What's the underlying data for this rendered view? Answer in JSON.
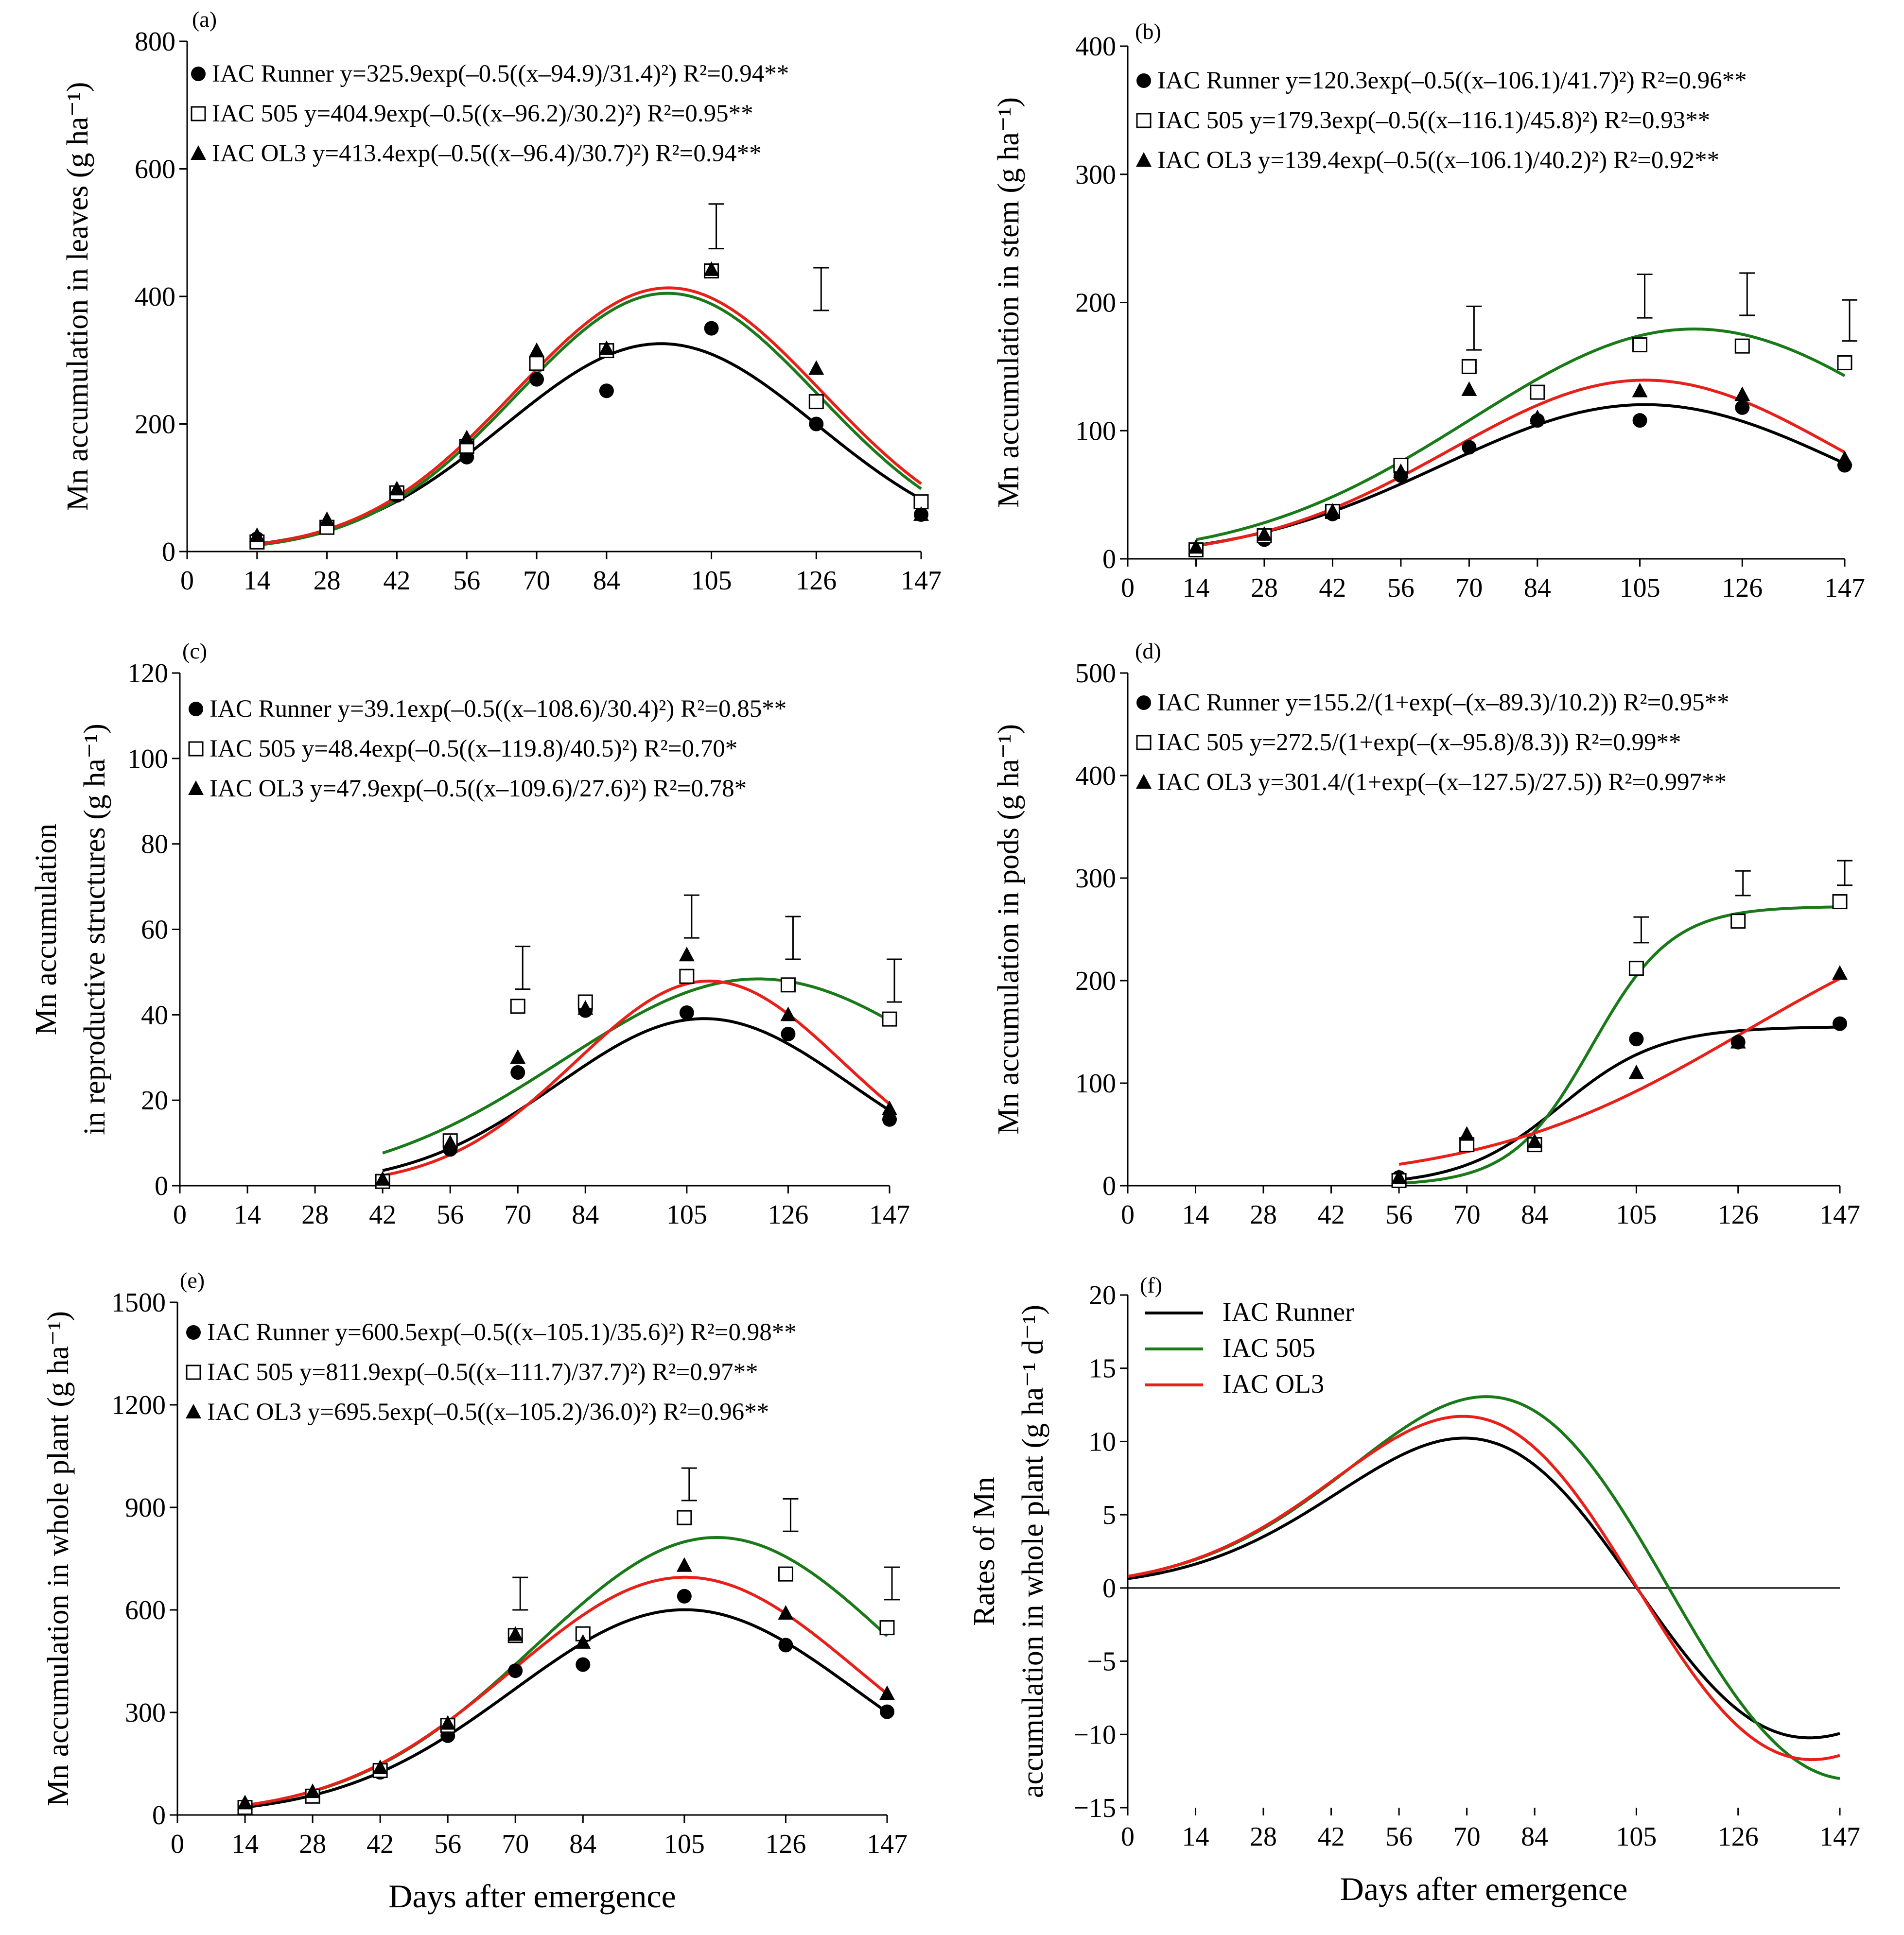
{
  "figure": {
    "xlabel_bottom": "Days after emergence"
  },
  "chart_data": [
    {
      "id": "a",
      "type": "scatter",
      "panel_label": "(a)",
      "ylabel_lines": [
        "Mn accumulation in leaves (g ha⁻¹)"
      ],
      "xlabel": "",
      "ylim": [
        0,
        800
      ],
      "yticks": [
        0,
        200,
        400,
        600,
        800
      ],
      "xticks": [
        0,
        14,
        28,
        42,
        56,
        70,
        84,
        105,
        126,
        147
      ],
      "x_range": [
        0,
        147
      ],
      "series": [
        {
          "name": "IAC Runner",
          "marker": "circle",
          "color": "#000000",
          "x": [
            14,
            28,
            42,
            56,
            70,
            84,
            105,
            126,
            147
          ],
          "y": [
            20,
            40,
            88,
            148,
            270,
            252,
            350,
            200,
            58
          ],
          "equation": "y=325.9exp(–0.5((x–94.9)/31.4)²) R²=0.94**",
          "fit": {
            "kind": "gauss",
            "a": 325.9,
            "b": 94.9,
            "c": 31.4
          }
        },
        {
          "name": "IAC 505",
          "marker": "square",
          "color": "#1a7a1a",
          "x": [
            14,
            28,
            42,
            56,
            70,
            84,
            105,
            126,
            147
          ],
          "y": [
            15,
            38,
            92,
            165,
            295,
            315,
            440,
            235,
            78
          ],
          "equation": "y=404.9exp(–0.5((x–96.2)/30.2)²) R²=0.95**",
          "fit": {
            "kind": "gauss",
            "a": 404.9,
            "b": 96.2,
            "c": 30.2
          }
        },
        {
          "name": "IAC OL3",
          "marker": "triangle",
          "color": "#e8201a",
          "x": [
            14,
            28,
            42,
            56,
            70,
            84,
            105,
            126,
            147
          ],
          "y": [
            25,
            50,
            98,
            178,
            315,
            318,
            442,
            287,
            58
          ],
          "equation": "y=413.4exp(–0.5((x–96.4)/30.7)²) R²=0.94**",
          "fit": {
            "kind": "gauss",
            "a": 413.4,
            "b": 96.4,
            "c": 30.7
          }
        }
      ],
      "error_bars": [
        {
          "x": 105,
          "low": 475,
          "high": 545
        },
        {
          "x": 126,
          "low": 378,
          "high": 445
        }
      ]
    },
    {
      "id": "b",
      "type": "scatter",
      "panel_label": "(b)",
      "ylabel_lines": [
        "Mn accumulation in stem (g ha⁻¹)"
      ],
      "xlabel": "",
      "ylim": [
        0,
        400
      ],
      "yticks": [
        0,
        100,
        200,
        300,
        400
      ],
      "xticks": [
        0,
        14,
        28,
        42,
        56,
        70,
        84,
        105,
        126,
        147
      ],
      "x_range": [
        0,
        147
      ],
      "series": [
        {
          "name": "IAC Runner",
          "marker": "circle",
          "color": "#000000",
          "x": [
            14,
            28,
            42,
            56,
            70,
            84,
            105,
            126,
            147
          ],
          "y": [
            7,
            15,
            35,
            65,
            87,
            108,
            108,
            118,
            73
          ],
          "equation": "y=120.3exp(–0.5((x–106.1)/41.7)²) R²=0.96**",
          "fit": {
            "kind": "gauss",
            "a": 120.3,
            "b": 106.1,
            "c": 41.7
          }
        },
        {
          "name": "IAC 505",
          "marker": "square",
          "color": "#1a7a1a",
          "x": [
            14,
            28,
            42,
            56,
            70,
            84,
            105,
            126,
            147
          ],
          "y": [
            7,
            18,
            37,
            73,
            150,
            130,
            167,
            166,
            153
          ],
          "equation": "y=179.3exp(–0.5((x–116.1)/45.8)²) R²=0.93**",
          "fit": {
            "kind": "gauss",
            "a": 179.3,
            "b": 116.1,
            "c": 45.8
          }
        },
        {
          "name": "IAC OL3",
          "marker": "triangle",
          "color": "#e8201a",
          "x": [
            14,
            28,
            42,
            56,
            70,
            84,
            105,
            126,
            147
          ],
          "y": [
            9,
            19,
            37,
            68,
            132,
            110,
            131,
            128,
            78
          ],
          "equation": "y=139.4exp(–0.5((x–106.1)/40.2)²) R²=0.92**",
          "fit": {
            "kind": "gauss",
            "a": 139.4,
            "b": 106.1,
            "c": 40.2
          }
        }
      ],
      "error_bars": [
        {
          "x": 70,
          "low": 163,
          "high": 197
        },
        {
          "x": 105,
          "low": 188,
          "high": 222
        },
        {
          "x": 126,
          "low": 190,
          "high": 223
        },
        {
          "x": 147,
          "low": 170,
          "high": 202
        }
      ]
    },
    {
      "id": "c",
      "type": "scatter",
      "panel_label": "(c)",
      "ylabel_lines": [
        "Mn accumulation",
        "in reproductive structures (g ha⁻¹)"
      ],
      "xlabel": "",
      "ylim": [
        0,
        120
      ],
      "yticks": [
        0,
        20,
        40,
        60,
        80,
        100,
        120
      ],
      "xticks": [
        0,
        14,
        28,
        42,
        56,
        70,
        84,
        105,
        126,
        147
      ],
      "x_range": [
        0,
        147
      ],
      "series": [
        {
          "name": "IAC Runner",
          "marker": "circle",
          "color": "#000000",
          "x": [
            42,
            56,
            70,
            84,
            105,
            126,
            147
          ],
          "y": [
            1,
            8.5,
            26.5,
            41,
            40.5,
            35.5,
            15.5
          ],
          "equation": "y=39.1exp(–0.5((x–108.6)/30.4)²) R²=0.85**",
          "fit": {
            "kind": "gauss",
            "a": 39.1,
            "b": 108.6,
            "c": 30.4
          }
        },
        {
          "name": "IAC 505",
          "marker": "square",
          "color": "#1a7a1a",
          "x": [
            42,
            56,
            70,
            84,
            105,
            126,
            147
          ],
          "y": [
            1,
            10.5,
            42,
            43,
            49,
            47,
            39
          ],
          "equation": "y=48.4exp(–0.5((x–119.8)/40.5)²) R²=0.70*",
          "fit": {
            "kind": "gauss",
            "a": 48.4,
            "b": 119.8,
            "c": 40.5
          }
        },
        {
          "name": "IAC OL3",
          "marker": "triangle",
          "color": "#e8201a",
          "x": [
            42,
            56,
            70,
            84,
            105,
            126,
            147
          ],
          "y": [
            1.5,
            10,
            30,
            41.5,
            54,
            40,
            18
          ],
          "equation": "y=47.9exp(–0.5((x–109.6)/27.6)²) R²=0.78*",
          "fit": {
            "kind": "gauss",
            "a": 47.9,
            "b": 109.6,
            "c": 27.6
          }
        }
      ],
      "error_bars": [
        {
          "x": 70,
          "low": 46,
          "high": 56
        },
        {
          "x": 105,
          "low": 58,
          "high": 68
        },
        {
          "x": 126,
          "low": 53,
          "high": 63
        },
        {
          "x": 147,
          "low": 43,
          "high": 53
        }
      ]
    },
    {
      "id": "d",
      "type": "scatter",
      "panel_label": "(d)",
      "ylabel_lines": [
        "Mn accumulation in pods (g ha⁻¹)"
      ],
      "xlabel": "",
      "ylim": [
        0,
        500
      ],
      "yticks": [
        0,
        100,
        200,
        300,
        400,
        500
      ],
      "xticks": [
        0,
        14,
        28,
        42,
        56,
        70,
        84,
        105,
        126,
        147
      ],
      "x_range": [
        0,
        147
      ],
      "series": [
        {
          "name": "IAC Runner",
          "marker": "circle",
          "color": "#000000",
          "x": [
            56,
            70,
            84,
            105,
            126,
            147
          ],
          "y": [
            8,
            42,
            40,
            143,
            140,
            158
          ],
          "equation": "y=155.2/(1+exp(–(x–89.3)/10.2)) R²=0.95**",
          "fit": {
            "kind": "logistic",
            "a": 155.2,
            "b": 89.3,
            "c": 10.2,
            "x_start": 56
          }
        },
        {
          "name": "IAC 505",
          "marker": "square",
          "color": "#1a7a1a",
          "x": [
            56,
            70,
            84,
            105,
            126,
            147
          ],
          "y": [
            5,
            40,
            40,
            212,
            258,
            277
          ],
          "equation": "y=272.5/(1+exp(–(x–95.8)/8.3)) R²=0.99**",
          "fit": {
            "kind": "logistic",
            "a": 272.5,
            "b": 95.8,
            "c": 8.3,
            "x_start": 56
          }
        },
        {
          "name": "IAC OL3",
          "marker": "triangle",
          "color": "#e8201a",
          "x": [
            56,
            70,
            84,
            105,
            126,
            147
          ],
          "y": [
            8,
            50,
            43,
            110,
            140,
            207
          ],
          "equation": "y=301.4/(1+exp(–(x–127.5)/27.5)) R²=0.997**",
          "fit": {
            "kind": "logistic",
            "a": 301.4,
            "b": 127.5,
            "c": 27.5,
            "x_start": 56
          }
        }
      ],
      "error_bars": [
        {
          "x": 105,
          "low": 237,
          "high": 262
        },
        {
          "x": 126,
          "low": 283,
          "high": 307
        },
        {
          "x": 147,
          "low": 293,
          "high": 317
        }
      ]
    },
    {
      "id": "e",
      "type": "scatter",
      "panel_label": "(e)",
      "ylabel_lines": [
        "Mn accumulation in whole plant (g ha⁻¹)"
      ],
      "xlabel": "Days after emergence",
      "ylim": [
        0,
        1500
      ],
      "yticks": [
        0,
        300,
        600,
        900,
        1200,
        1500
      ],
      "xticks": [
        0,
        14,
        28,
        42,
        56,
        70,
        84,
        105,
        126,
        147
      ],
      "x_range": [
        0,
        147
      ],
      "series": [
        {
          "name": "IAC Runner",
          "marker": "circle",
          "color": "#000000",
          "x": [
            14,
            28,
            42,
            56,
            70,
            84,
            105,
            126,
            147
          ],
          "y": [
            25,
            55,
            125,
            232,
            422,
            440,
            640,
            497,
            302
          ],
          "equation": "y=600.5exp(–0.5((x–105.1)/35.6)²) R²=0.98**",
          "fit": {
            "kind": "gauss",
            "a": 600.5,
            "b": 105.1,
            "c": 35.6
          }
        },
        {
          "name": "IAC 505",
          "marker": "square",
          "color": "#1a7a1a",
          "x": [
            14,
            28,
            42,
            56,
            70,
            84,
            105,
            126,
            147
          ],
          "y": [
            22,
            55,
            130,
            262,
            525,
            530,
            870,
            705,
            548
          ],
          "equation": "y=811.9exp(–0.5((x–111.7)/37.7)²) R²=0.97**",
          "fit": {
            "kind": "gauss",
            "a": 811.9,
            "b": 111.7,
            "c": 37.7
          }
        },
        {
          "name": "IAC OL3",
          "marker": "triangle",
          "color": "#e8201a",
          "x": [
            14,
            28,
            42,
            56,
            70,
            84,
            105,
            126,
            147
          ],
          "y": [
            35,
            68,
            138,
            268,
            528,
            505,
            730,
            590,
            355
          ],
          "equation": "y=695.5exp(–0.5((x–105.2)/36.0)²) R²=0.96**",
          "fit": {
            "kind": "gauss",
            "a": 695.5,
            "b": 105.2,
            "c": 36.0
          }
        }
      ],
      "error_bars": [
        {
          "x": 70,
          "low": 600,
          "high": 695
        },
        {
          "x": 105,
          "low": 920,
          "high": 1015
        },
        {
          "x": 126,
          "low": 830,
          "high": 925
        },
        {
          "x": 147,
          "low": 630,
          "high": 725
        }
      ]
    },
    {
      "id": "f",
      "type": "line",
      "panel_label": "(f)",
      "ylabel_lines": [
        "Rates of Mn",
        "accumulation in whole plant (g ha⁻¹ d⁻¹)"
      ],
      "xlabel": "Days after emergence",
      "ylim": [
        -15,
        20
      ],
      "yticks": [
        -15,
        -10,
        -5,
        0,
        5,
        10,
        15,
        20
      ],
      "xticks": [
        0,
        14,
        28,
        42,
        56,
        70,
        84,
        105,
        126,
        147
      ],
      "x_range": [
        0,
        147
      ],
      "series": [
        {
          "name": "IAC Runner",
          "color": "#000000",
          "fit": {
            "kind": "deriv",
            "a": 600.5,
            "b": 105.1,
            "c": 35.6
          }
        },
        {
          "name": "IAC 505",
          "color": "#1a7a1a",
          "fit": {
            "kind": "deriv",
            "a": 811.9,
            "b": 111.7,
            "c": 37.7
          }
        },
        {
          "name": "IAC OL3",
          "color": "#e8201a",
          "fit": {
            "kind": "deriv",
            "a": 695.5,
            "b": 105.2,
            "c": 36.0
          }
        }
      ]
    }
  ]
}
